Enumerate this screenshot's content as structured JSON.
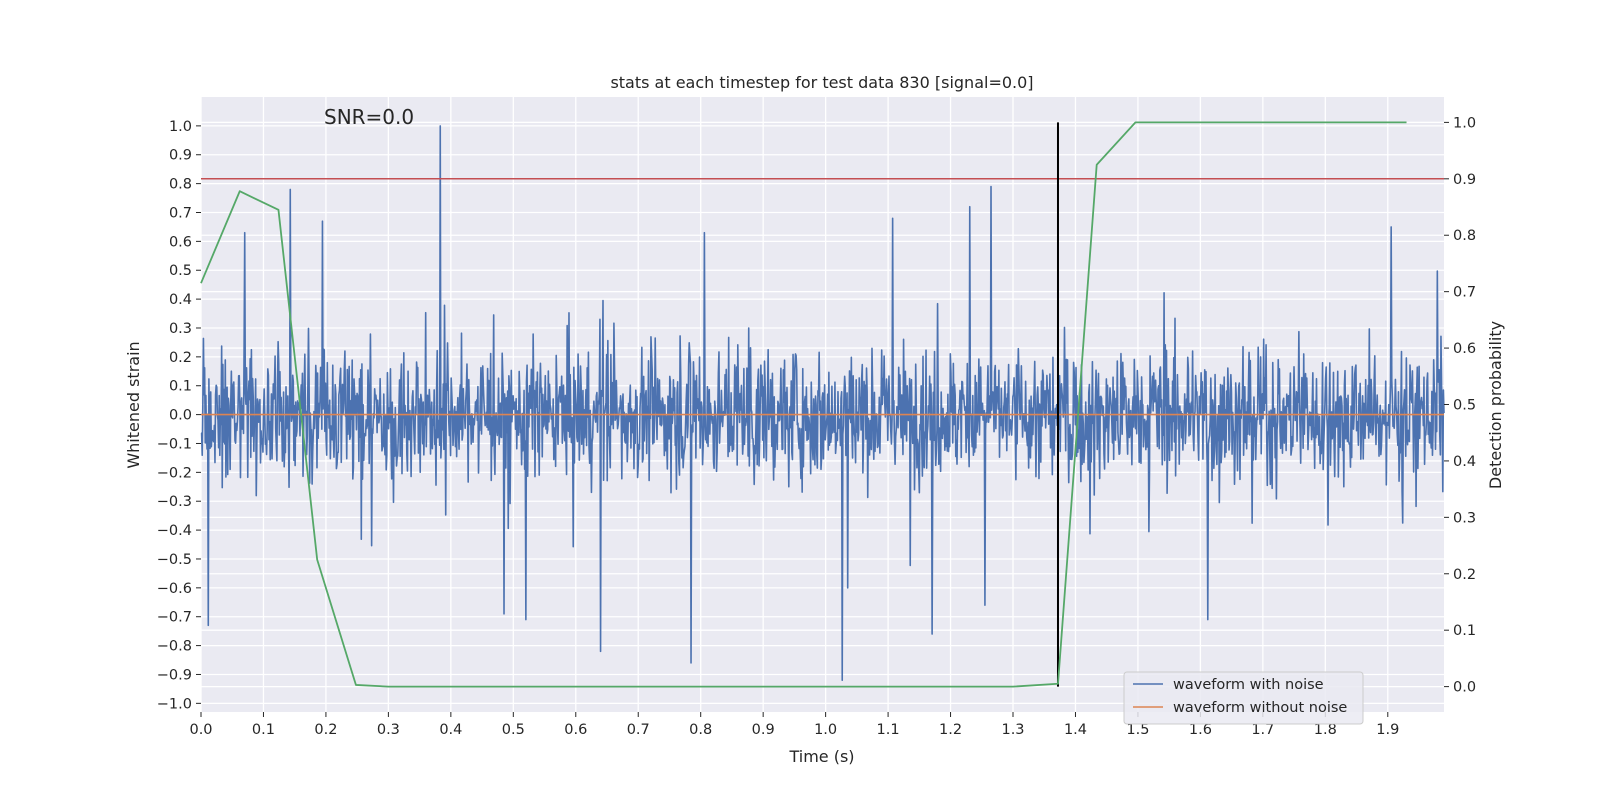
{
  "chart_data": {
    "type": "line",
    "title": "stats at each timestep for test data 830 [signal=0.0]",
    "xlabel": "Time (s)",
    "ylabel": "Whitened strain",
    "y2label": "Detection probability",
    "annotation": "SNR=0.0",
    "xlim": [
      0.0,
      1.99
    ],
    "ylim": [
      -1.03,
      1.1
    ],
    "y2lim": [
      -0.045,
      1.045
    ],
    "x_ticks": [
      "0.0",
      "0.1",
      "0.2",
      "0.3",
      "0.4",
      "0.5",
      "0.6",
      "0.7",
      "0.8",
      "0.9",
      "1.0",
      "1.1",
      "1.2",
      "1.3",
      "1.4",
      "1.5",
      "1.6",
      "1.7",
      "1.8",
      "1.9"
    ],
    "y_ticks": [
      "1.0",
      "0.9",
      "0.8",
      "0.7",
      "0.6",
      "0.5",
      "0.4",
      "0.3",
      "0.2",
      "0.1",
      "0.0",
      "−0.1",
      "−0.2",
      "−0.3",
      "−0.4",
      "−0.5",
      "−0.6",
      "−0.7",
      "−0.8",
      "−0.9",
      "−1.0"
    ],
    "y2_ticks": [
      "1.0",
      "0.9",
      "0.8",
      "0.7",
      "0.6",
      "0.5",
      "0.4",
      "0.3",
      "0.2",
      "0.1",
      "0.0"
    ],
    "grid": true,
    "legend_position": "lower-right",
    "series": [
      {
        "name": "waveform with noise",
        "color": "#4c72b0",
        "axis": "left",
        "samples": 2048,
        "approx_amplitude": 0.25,
        "peaks": [
          {
            "x": 0.383,
            "y": 1.0
          },
          {
            "x": 0.143,
            "y": 0.78
          },
          {
            "x": 1.265,
            "y": 0.79
          },
          {
            "x": 1.027,
            "y": -0.92
          },
          {
            "x": 0.785,
            "y": -0.86
          },
          {
            "x": 0.64,
            "y": -0.82
          },
          {
            "x": 1.612,
            "y": -0.71
          },
          {
            "x": 0.012,
            "y": -0.73
          },
          {
            "x": 0.52,
            "y": -0.71
          },
          {
            "x": 0.485,
            "y": -0.69
          },
          {
            "x": 1.905,
            "y": 0.65
          },
          {
            "x": 0.07,
            "y": 0.63
          },
          {
            "x": 0.194,
            "y": 0.67
          },
          {
            "x": 0.806,
            "y": 0.63
          },
          {
            "x": 1.231,
            "y": 0.72
          },
          {
            "x": 1.107,
            "y": 0.68
          },
          {
            "x": 1.17,
            "y": -0.76
          },
          {
            "x": 1.255,
            "y": -0.66
          },
          {
            "x": 1.035,
            "y": -0.6
          }
        ]
      },
      {
        "name": "waveform without noise",
        "color": "#dd8452",
        "axis": "left",
        "x": [
          0.0,
          1.99
        ],
        "y": [
          0.0,
          0.0
        ]
      },
      {
        "color": "#55a868",
        "axis": "right",
        "x": [
          0.0,
          0.062,
          0.124,
          0.186,
          0.248,
          0.3,
          1.3,
          1.372,
          1.434,
          1.496,
          1.93
        ],
        "y": [
          0.715,
          0.878,
          0.845,
          0.225,
          0.003,
          0.0,
          0.0,
          0.005,
          0.925,
          1.0,
          1.0
        ]
      }
    ],
    "reference_lines": [
      {
        "orientation": "horizontal",
        "axis": "right",
        "value": 0.9,
        "color": "#c44e52"
      },
      {
        "orientation": "vertical",
        "value": 1.372,
        "y_from": 0.0,
        "y_to": 1.0,
        "axis": "right",
        "color": "#000000"
      }
    ]
  }
}
